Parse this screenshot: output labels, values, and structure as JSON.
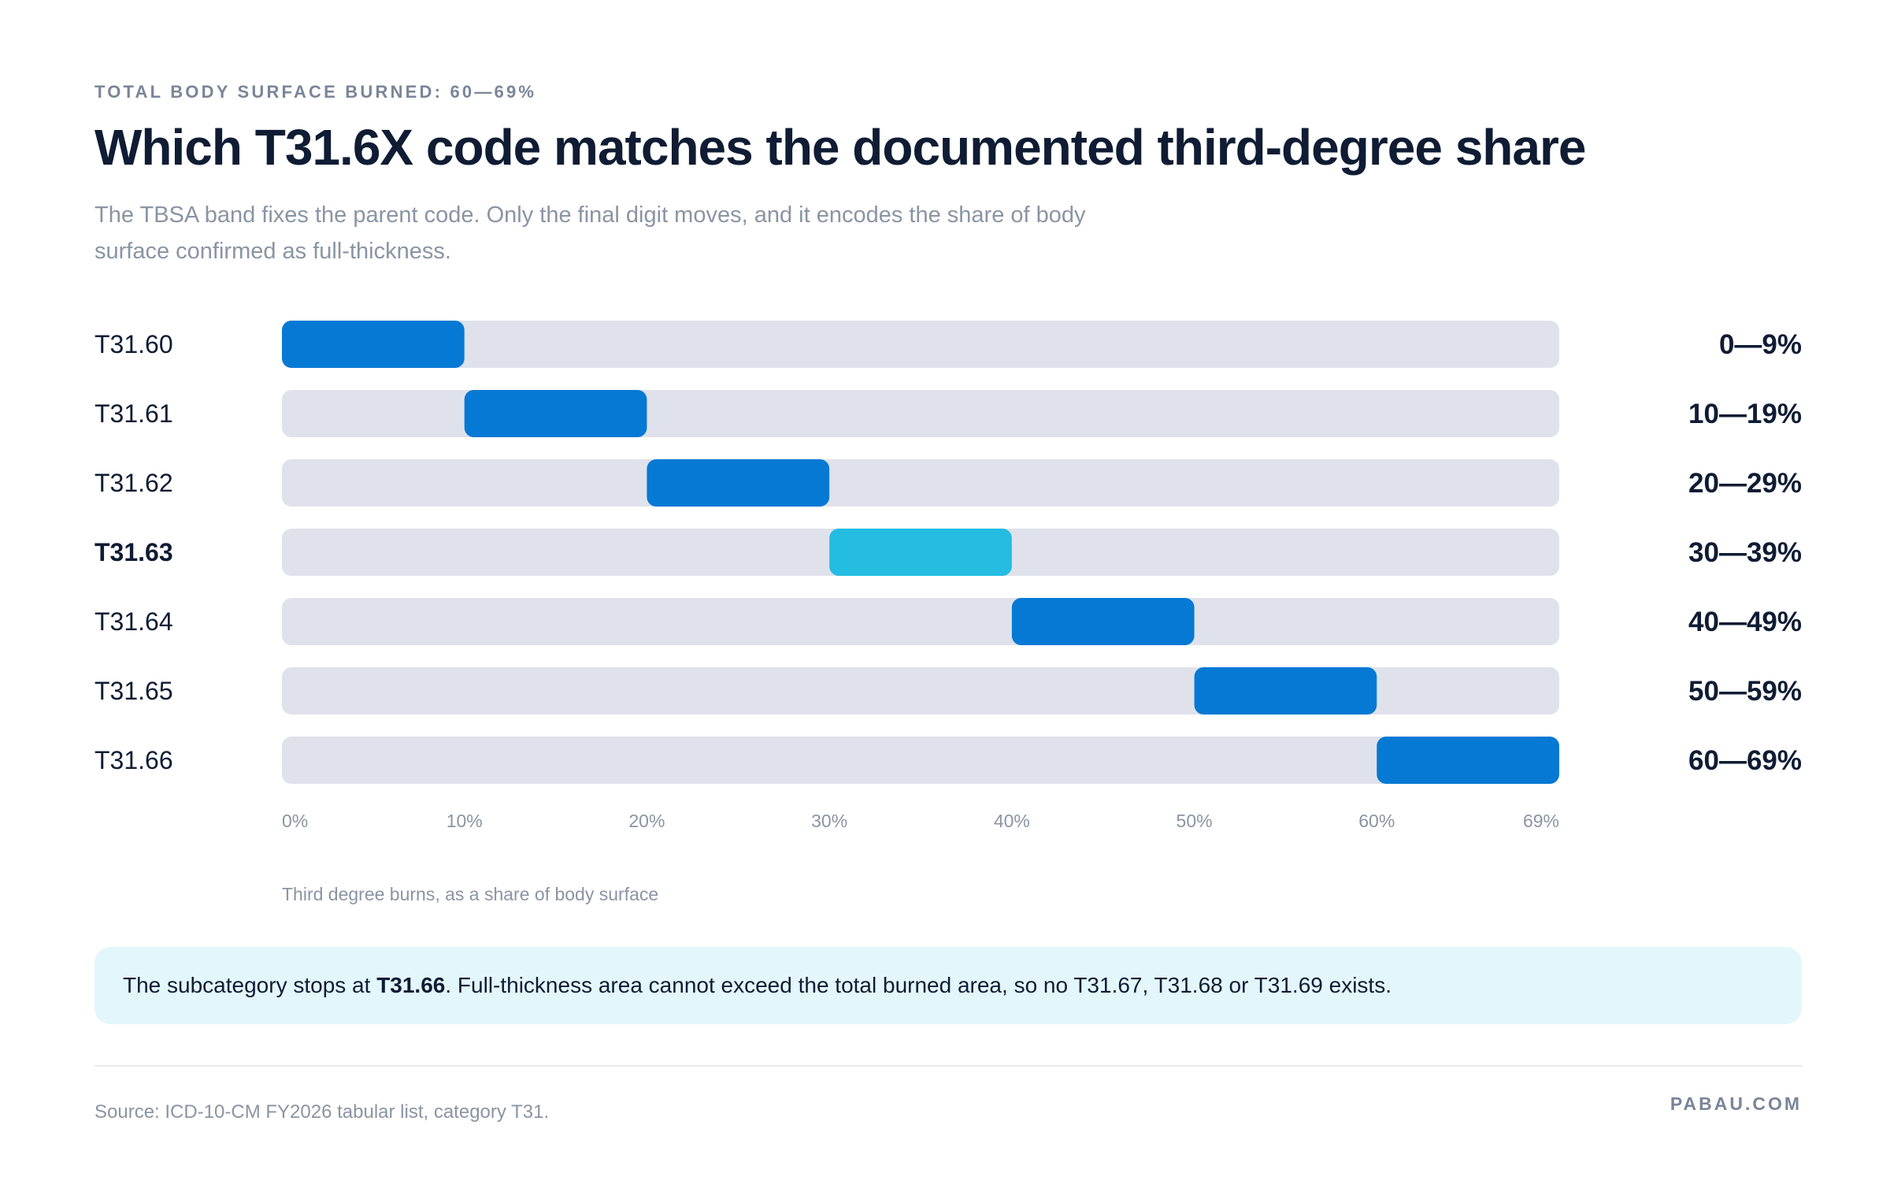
{
  "header": {
    "eyebrow": "TOTAL BODY SURFACE BURNED: 60—69%",
    "title": "Which T31.6X code matches the documented third-degree share",
    "subtitle": "The TBSA band fixes the parent code. Only the final digit moves, and it encodes the share of body surface confirmed as full-thickness."
  },
  "chart_data": {
    "type": "bar",
    "orientation": "horizontal-range",
    "xlabel": "Third degree burns, as a share of body surface",
    "xlim": [
      0,
      69
    ],
    "x_ticks": [
      "0%",
      "10%",
      "20%",
      "30%",
      "40%",
      "50%",
      "60%",
      "69%"
    ],
    "grid": false,
    "highlight_index": 3,
    "colors": {
      "bar": "#0679d4",
      "highlight": "#25bce1",
      "track": "#dfe2eb"
    },
    "rows": [
      {
        "code": "T31.60",
        "range_label": "0—9%",
        "start": 0,
        "end": 10
      },
      {
        "code": "T31.61",
        "range_label": "10—19%",
        "start": 10,
        "end": 20
      },
      {
        "code": "T31.62",
        "range_label": "20—29%",
        "start": 20,
        "end": 30
      },
      {
        "code": "T31.63",
        "range_label": "30—39%",
        "start": 30,
        "end": 40
      },
      {
        "code": "T31.64",
        "range_label": "40—49%",
        "start": 40,
        "end": 50
      },
      {
        "code": "T31.65",
        "range_label": "50—59%",
        "start": 50,
        "end": 60
      },
      {
        "code": "T31.66",
        "range_label": "60—69%",
        "start": 60,
        "end": 70
      }
    ]
  },
  "note": {
    "before": "The subcategory stops at ",
    "bold": "T31.66",
    "after": ". Full-thickness area cannot exceed the total burned area, so no T31.67, T31.68 or T31.69 exists."
  },
  "footer": {
    "source": "Source: ICD-10-CM FY2026 tabular list, category T31.",
    "brand": "PABAU.COM"
  }
}
